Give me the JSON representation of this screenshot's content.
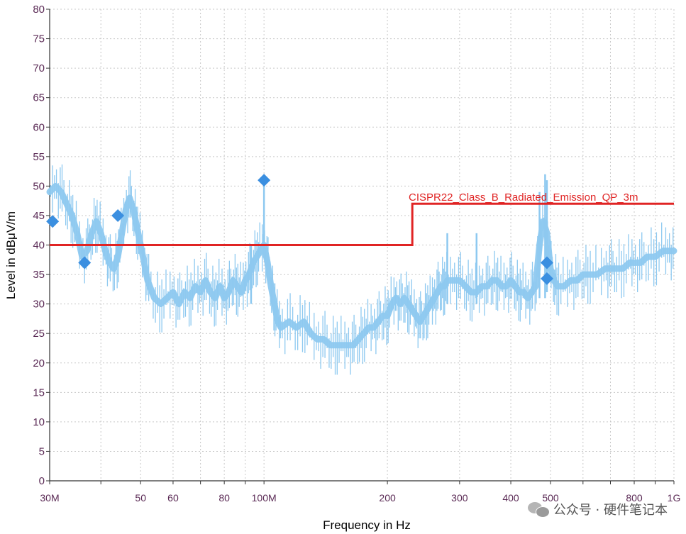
{
  "chart_data": {
    "type": "line",
    "xlabel": "Frequency in Hz",
    "ylabel": "Level in dBμV/m",
    "x_scale": "log",
    "xlim": [
      30000000,
      1000000000
    ],
    "ylim": [
      0,
      80
    ],
    "grid": true,
    "y_ticks": [
      0,
      5,
      10,
      15,
      20,
      25,
      30,
      35,
      40,
      45,
      50,
      55,
      60,
      65,
      70,
      75,
      80
    ],
    "x_ticks": [
      {
        "value": 30000000,
        "label": "30M"
      },
      {
        "value": 50000000,
        "label": "50"
      },
      {
        "value": 60000000,
        "label": "60"
      },
      {
        "value": 80000000,
        "label": "80"
      },
      {
        "value": 100000000,
        "label": "100M"
      },
      {
        "value": 200000000,
        "label": "200"
      },
      {
        "value": 300000000,
        "label": "300"
      },
      {
        "value": 400000000,
        "label": "400"
      },
      {
        "value": 500000000,
        "label": "500"
      },
      {
        "value": 800000000,
        "label": "800"
      },
      {
        "value": 1000000000,
        "label": "1G"
      }
    ],
    "limit_line": {
      "name": "CISPR22_Class_B_Radiated_Emission_QP_3m",
      "color": "#e02424",
      "points": [
        [
          30000000,
          40
        ],
        [
          230000000,
          40
        ],
        [
          230000000,
          47
        ],
        [
          1000000000,
          47
        ]
      ]
    },
    "spectrum": {
      "color": "#8ec9f0",
      "points": [
        [
          30000000,
          49
        ],
        [
          31000000,
          50
        ],
        [
          32000000,
          49
        ],
        [
          33000000,
          47
        ],
        [
          34000000,
          45
        ],
        [
          35000000,
          42
        ],
        [
          36000000,
          38
        ],
        [
          37000000,
          39
        ],
        [
          38000000,
          42
        ],
        [
          39000000,
          44
        ],
        [
          40000000,
          42
        ],
        [
          41000000,
          39
        ],
        [
          42000000,
          37
        ],
        [
          43000000,
          36
        ],
        [
          44000000,
          38
        ],
        [
          45000000,
          42
        ],
        [
          46000000,
          46
        ],
        [
          47000000,
          48
        ],
        [
          48000000,
          46
        ],
        [
          49000000,
          43
        ],
        [
          50000000,
          40
        ],
        [
          51000000,
          37
        ],
        [
          52000000,
          34
        ],
        [
          54000000,
          31
        ],
        [
          56000000,
          30
        ],
        [
          58000000,
          31
        ],
        [
          60000000,
          32
        ],
        [
          62000000,
          30
        ],
        [
          64000000,
          32
        ],
        [
          66000000,
          31
        ],
        [
          68000000,
          33
        ],
        [
          70000000,
          32
        ],
        [
          72000000,
          34
        ],
        [
          74000000,
          32
        ],
        [
          76000000,
          31
        ],
        [
          78000000,
          33
        ],
        [
          80000000,
          31
        ],
        [
          82000000,
          32
        ],
        [
          84000000,
          34
        ],
        [
          86000000,
          33
        ],
        [
          88000000,
          32
        ],
        [
          90000000,
          34
        ],
        [
          92000000,
          35
        ],
        [
          94000000,
          37
        ],
        [
          96000000,
          38
        ],
        [
          98000000,
          39
        ],
        [
          100000000,
          40
        ],
        [
          102000000,
          37
        ],
        [
          104000000,
          33
        ],
        [
          106000000,
          30
        ],
        [
          108000000,
          27
        ],
        [
          110000000,
          26
        ],
        [
          115000000,
          27
        ],
        [
          120000000,
          26
        ],
        [
          125000000,
          27
        ],
        [
          130000000,
          25
        ],
        [
          135000000,
          24
        ],
        [
          140000000,
          24
        ],
        [
          145000000,
          23
        ],
        [
          150000000,
          23
        ],
        [
          155000000,
          23
        ],
        [
          160000000,
          23
        ],
        [
          165000000,
          23
        ],
        [
          170000000,
          24
        ],
        [
          175000000,
          25
        ],
        [
          180000000,
          26
        ],
        [
          185000000,
          26
        ],
        [
          190000000,
          27
        ],
        [
          195000000,
          28
        ],
        [
          200000000,
          28
        ],
        [
          205000000,
          30
        ],
        [
          210000000,
          31
        ],
        [
          215000000,
          30
        ],
        [
          220000000,
          31
        ],
        [
          225000000,
          30
        ],
        [
          230000000,
          29
        ],
        [
          235000000,
          28
        ],
        [
          240000000,
          27
        ],
        [
          245000000,
          28
        ],
        [
          250000000,
          29
        ],
        [
          255000000,
          30
        ],
        [
          260000000,
          31
        ],
        [
          265000000,
          32
        ],
        [
          270000000,
          33
        ],
        [
          275000000,
          33
        ],
        [
          280000000,
          34
        ],
        [
          290000000,
          34
        ],
        [
          300000000,
          34
        ],
        [
          310000000,
          33
        ],
        [
          320000000,
          32
        ],
        [
          330000000,
          32
        ],
        [
          340000000,
          33
        ],
        [
          350000000,
          33
        ],
        [
          360000000,
          34
        ],
        [
          370000000,
          34
        ],
        [
          380000000,
          33
        ],
        [
          390000000,
          33
        ],
        [
          400000000,
          34
        ],
        [
          410000000,
          33
        ],
        [
          420000000,
          32
        ],
        [
          430000000,
          32
        ],
        [
          440000000,
          31
        ],
        [
          450000000,
          32
        ],
        [
          460000000,
          33
        ],
        [
          470000000,
          40
        ],
        [
          480000000,
          44
        ],
        [
          490000000,
          42
        ],
        [
          500000000,
          36
        ],
        [
          510000000,
          34
        ],
        [
          520000000,
          33
        ],
        [
          540000000,
          33
        ],
        [
          560000000,
          34
        ],
        [
          580000000,
          34
        ],
        [
          600000000,
          35
        ],
        [
          620000000,
          35
        ],
        [
          650000000,
          35
        ],
        [
          680000000,
          36
        ],
        [
          700000000,
          36
        ],
        [
          720000000,
          36
        ],
        [
          750000000,
          36
        ],
        [
          780000000,
          37
        ],
        [
          800000000,
          37
        ],
        [
          830000000,
          37
        ],
        [
          860000000,
          38
        ],
        [
          900000000,
          38
        ],
        [
          940000000,
          39
        ],
        [
          970000000,
          39
        ],
        [
          1000000000,
          39
        ]
      ]
    },
    "markers": {
      "color": "#3b8fe0",
      "points": [
        [
          30500000,
          44
        ],
        [
          36500000,
          37
        ],
        [
          44000000,
          45
        ],
        [
          100000000,
          51
        ],
        [
          490000000,
          37
        ],
        [
          490000000,
          34.3
        ]
      ]
    }
  },
  "watermark": {
    "text": "公众号 · 硬件笔记本",
    "icon": "wechat-icon"
  }
}
